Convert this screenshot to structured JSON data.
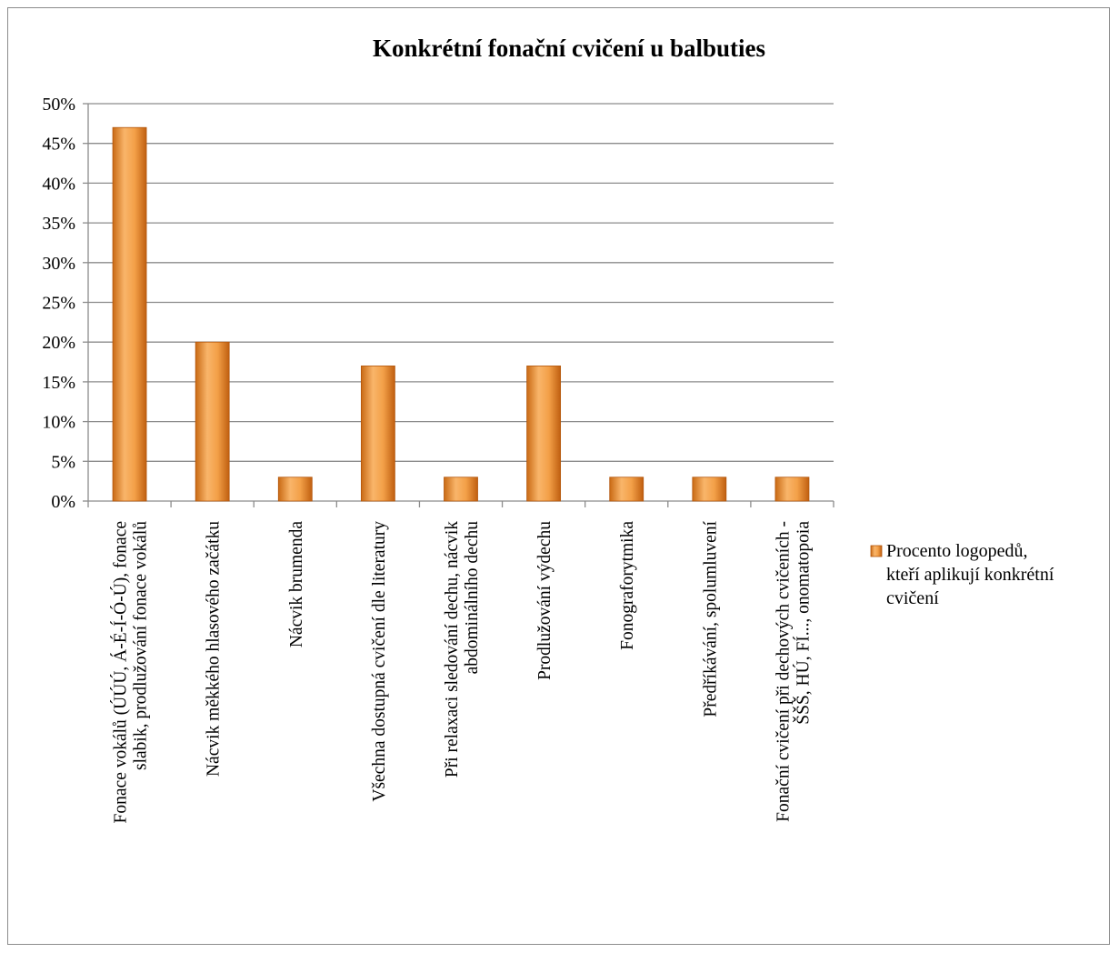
{
  "chart_data": {
    "type": "bar",
    "title": "Konkrétní fonační cvičení u balbuties",
    "categories": [
      [
        "Fonace vokálů (ÚÚÚ, Á-É-Í-Ó-Ú), fonace",
        "slabik, prodlužování fonace vokálů"
      ],
      [
        "Nácvik měkkého hlasového začátku"
      ],
      [
        "Nácvik brumenda"
      ],
      [
        "Všechna dostupná cvičení dle literatury"
      ],
      [
        "Při relaxaci sledování dechu, nácvik",
        "abdominálního dechu"
      ],
      [
        "Prodlužování výdechu"
      ],
      [
        "Fonograforytmika"
      ],
      [
        "Předříkávání, spolumluvení"
      ],
      [
        "Fonační cvičení při dechových cvičeních -",
        "ŠŠŠ, HÚ, FÍ..., onomatopoia"
      ]
    ],
    "series": [
      {
        "name": "Procento logopedů, kteří aplikují konkrétní cvičení",
        "values": [
          47,
          20,
          3,
          17,
          3,
          17,
          3,
          3,
          3
        ]
      }
    ],
    "ylim": [
      0,
      50
    ],
    "yticks": [
      0,
      5,
      10,
      15,
      20,
      25,
      30,
      35,
      40,
      45,
      50
    ],
    "ytick_suffix": "%",
    "grid": true,
    "legend_position": "right",
    "legend_lines": [
      "Procento logopedů,",
      "kteří aplikují konkrétní",
      "cvičení"
    ],
    "colors": {
      "bar_light": "#f9b56a",
      "bar_mid": "#ee8a25",
      "bar_dark": "#c05f10",
      "grid": "#8c8c8c"
    }
  }
}
